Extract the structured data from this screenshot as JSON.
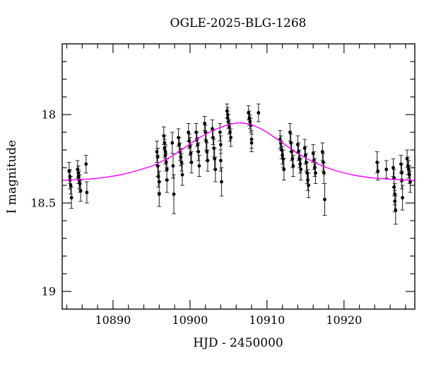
{
  "chart_data": {
    "type": "scatter",
    "title": "OGLE-2025-BLG-1268",
    "xlabel": "HJD - 2450000",
    "ylabel": "I magnitude",
    "xlim": [
      10883.4,
      10929.2
    ],
    "ylim": [
      17.6,
      19.1
    ],
    "y_inverted": true,
    "grid": false,
    "legend": "none",
    "x_major_ticks": [
      10890,
      10900,
      10910,
      10920
    ],
    "x_major_tick_labels": [
      "10890",
      "10900",
      "10910",
      "10920"
    ],
    "x_minor_step": 2,
    "y_major_ticks": [
      18,
      18.5,
      19
    ],
    "y_major_tick_labels": [
      "18",
      "18.5",
      "19"
    ],
    "y_minor_step": 0.1,
    "colors": {
      "background": "#ffffff",
      "frame": "#1a1a1a",
      "text": "#000000",
      "model_curve": "#ff00ff",
      "data_points": "#000000",
      "error_bars": "#2e2e2e"
    },
    "model_curve": [
      [
        10883.4,
        18.372
      ],
      [
        10885,
        18.369
      ],
      [
        10886,
        18.367
      ],
      [
        10887,
        18.364
      ],
      [
        10888,
        18.36
      ],
      [
        10889,
        18.355
      ],
      [
        10890,
        18.348
      ],
      [
        10891,
        18.34
      ],
      [
        10892,
        18.33
      ],
      [
        10893,
        18.318
      ],
      [
        10894,
        18.305
      ],
      [
        10895,
        18.292
      ],
      [
        10896,
        18.272
      ],
      [
        10897,
        18.25
      ],
      [
        10898,
        18.225
      ],
      [
        10899,
        18.196
      ],
      [
        10900,
        18.166
      ],
      [
        10901,
        18.136
      ],
      [
        10902,
        18.111
      ],
      [
        10903,
        18.089
      ],
      [
        10904,
        18.071
      ],
      [
        10905,
        18.058
      ],
      [
        10905.5,
        18.052
      ],
      [
        10906,
        18.048
      ],
      [
        10906.5,
        18.047
      ],
      [
        10907,
        18.048
      ],
      [
        10907.5,
        18.052
      ],
      [
        10908,
        18.058
      ],
      [
        10909,
        18.076
      ],
      [
        10910,
        18.1
      ],
      [
        10911,
        18.13
      ],
      [
        10912,
        18.16
      ],
      [
        10913,
        18.19
      ],
      [
        10914,
        18.22
      ],
      [
        10915,
        18.245
      ],
      [
        10916,
        18.267
      ],
      [
        10917,
        18.287
      ],
      [
        10918,
        18.304
      ],
      [
        10919,
        18.318
      ],
      [
        10920,
        18.33
      ],
      [
        10921,
        18.34
      ],
      [
        10922,
        18.348
      ],
      [
        10923,
        18.354
      ],
      [
        10924,
        18.359
      ],
      [
        10925,
        18.363
      ],
      [
        10926,
        18.366
      ],
      [
        10927,
        18.368
      ],
      [
        10928,
        18.37
      ],
      [
        10929.2,
        18.372
      ]
    ],
    "points": [
      [
        10884.3,
        18.32,
        0.05
      ],
      [
        10884.4,
        18.35,
        0.04
      ],
      [
        10884.4,
        18.37,
        0.05
      ],
      [
        10884.5,
        18.4,
        0.05
      ],
      [
        10884.6,
        18.47,
        0.06
      ],
      [
        10885.4,
        18.31,
        0.05
      ],
      [
        10885.5,
        18.33,
        0.04
      ],
      [
        10885.5,
        18.35,
        0.04
      ],
      [
        10885.6,
        18.37,
        0.05
      ],
      [
        10885.7,
        18.39,
        0.05
      ],
      [
        10885.8,
        18.43,
        0.06
      ],
      [
        10886.5,
        18.28,
        0.05
      ],
      [
        10886.6,
        18.44,
        0.06
      ],
      [
        10895.7,
        18.21,
        0.06
      ],
      [
        10895.8,
        18.24,
        0.05
      ],
      [
        10895.8,
        18.29,
        0.06
      ],
      [
        10895.9,
        18.35,
        0.06
      ],
      [
        10896.0,
        18.38,
        0.06
      ],
      [
        10896.0,
        18.45,
        0.07
      ],
      [
        10896.6,
        18.12,
        0.05
      ],
      [
        10896.7,
        18.16,
        0.04
      ],
      [
        10896.7,
        18.19,
        0.05
      ],
      [
        10896.8,
        18.21,
        0.04
      ],
      [
        10896.8,
        18.23,
        0.05
      ],
      [
        10896.9,
        18.27,
        0.05
      ],
      [
        10897.0,
        18.31,
        0.06
      ],
      [
        10897.0,
        18.37,
        0.07
      ],
      [
        10897.7,
        18.16,
        0.06
      ],
      [
        10897.8,
        18.29,
        0.07
      ],
      [
        10897.9,
        18.45,
        0.11
      ],
      [
        10898.5,
        18.13,
        0.05
      ],
      [
        10898.6,
        18.17,
        0.04
      ],
      [
        10898.7,
        18.21,
        0.05
      ],
      [
        10898.8,
        18.24,
        0.05
      ],
      [
        10898.9,
        18.27,
        0.05
      ],
      [
        10899.0,
        18.34,
        0.06
      ],
      [
        10899.8,
        18.1,
        0.05
      ],
      [
        10899.9,
        18.15,
        0.04
      ],
      [
        10900.0,
        18.18,
        0.05
      ],
      [
        10900.1,
        18.22,
        0.05
      ],
      [
        10900.2,
        18.27,
        0.06
      ],
      [
        10900.8,
        18.1,
        0.05
      ],
      [
        10900.9,
        18.14,
        0.04
      ],
      [
        10901.0,
        18.17,
        0.04
      ],
      [
        10901.1,
        18.21,
        0.05
      ],
      [
        10901.2,
        18.29,
        0.06
      ],
      [
        10901.9,
        18.05,
        0.04
      ],
      [
        10902.0,
        18.1,
        0.04
      ],
      [
        10902.1,
        18.15,
        0.05
      ],
      [
        10902.2,
        18.21,
        0.05
      ],
      [
        10902.3,
        18.26,
        0.06
      ],
      [
        10902.9,
        18.08,
        0.05
      ],
      [
        10903.0,
        18.13,
        0.04
      ],
      [
        10903.1,
        18.19,
        0.05
      ],
      [
        10903.2,
        18.25,
        0.06
      ],
      [
        10903.3,
        18.31,
        0.07
      ],
      [
        10903.9,
        18.1,
        0.05
      ],
      [
        10904.0,
        18.17,
        0.05
      ],
      [
        10904.0,
        18.26,
        0.06
      ],
      [
        10904.1,
        18.38,
        0.08
      ],
      [
        10904.8,
        17.98,
        0.04
      ],
      [
        10904.9,
        18.0,
        0.04
      ],
      [
        10904.9,
        18.02,
        0.04
      ],
      [
        10905.0,
        18.04,
        0.04
      ],
      [
        10905.1,
        18.07,
        0.04
      ],
      [
        10905.2,
        18.1,
        0.05
      ],
      [
        10905.3,
        18.13,
        0.05
      ],
      [
        10907.6,
        17.99,
        0.04
      ],
      [
        10907.7,
        18.02,
        0.04
      ],
      [
        10907.8,
        18.04,
        0.04
      ],
      [
        10907.9,
        18.06,
        0.04
      ],
      [
        10908.0,
        18.14,
        0.05
      ],
      [
        10908.0,
        18.16,
        0.05
      ],
      [
        10908.9,
        17.99,
        0.05
      ],
      [
        10911.7,
        18.14,
        0.05
      ],
      [
        10911.8,
        18.16,
        0.04
      ],
      [
        10911.9,
        18.2,
        0.05
      ],
      [
        10912.0,
        18.23,
        0.05
      ],
      [
        10912.1,
        18.25,
        0.05
      ],
      [
        10912.2,
        18.31,
        0.06
      ],
      [
        10913.0,
        18.1,
        0.05
      ],
      [
        10913.1,
        18.16,
        0.05
      ],
      [
        10913.2,
        18.21,
        0.05
      ],
      [
        10913.3,
        18.25,
        0.05
      ],
      [
        10913.4,
        18.29,
        0.06
      ],
      [
        10914.0,
        18.17,
        0.05
      ],
      [
        10914.1,
        18.21,
        0.05
      ],
      [
        10914.2,
        18.25,
        0.05
      ],
      [
        10914.3,
        18.28,
        0.05
      ],
      [
        10914.4,
        18.31,
        0.06
      ],
      [
        10914.9,
        18.19,
        0.05
      ],
      [
        10915.0,
        18.23,
        0.05
      ],
      [
        10915.1,
        18.27,
        0.05
      ],
      [
        10915.2,
        18.33,
        0.06
      ],
      [
        10915.3,
        18.37,
        0.06
      ],
      [
        10915.4,
        18.4,
        0.07
      ],
      [
        10916.0,
        18.22,
        0.05
      ],
      [
        10916.1,
        18.26,
        0.05
      ],
      [
        10916.2,
        18.3,
        0.05
      ],
      [
        10916.3,
        18.33,
        0.06
      ],
      [
        10917.2,
        18.21,
        0.05
      ],
      [
        10917.3,
        18.27,
        0.05
      ],
      [
        10917.4,
        18.33,
        0.06
      ],
      [
        10917.5,
        18.48,
        0.09
      ],
      [
        10924.3,
        18.27,
        0.06
      ],
      [
        10924.4,
        18.32,
        0.05
      ],
      [
        10925.5,
        18.31,
        0.05
      ],
      [
        10926.4,
        18.3,
        0.05
      ],
      [
        10926.5,
        18.36,
        0.05
      ],
      [
        10926.5,
        18.41,
        0.05
      ],
      [
        10926.6,
        18.45,
        0.06
      ],
      [
        10926.6,
        18.49,
        0.06
      ],
      [
        10926.7,
        18.54,
        0.08
      ],
      [
        10927.4,
        18.28,
        0.05
      ],
      [
        10927.5,
        18.33,
        0.05
      ],
      [
        10927.5,
        18.37,
        0.05
      ],
      [
        10927.6,
        18.47,
        0.07
      ],
      [
        10928.2,
        18.25,
        0.05
      ],
      [
        10928.3,
        18.29,
        0.05
      ],
      [
        10928.4,
        18.31,
        0.05
      ],
      [
        10928.5,
        18.34,
        0.05
      ],
      [
        10928.6,
        18.38,
        0.06
      ]
    ]
  }
}
